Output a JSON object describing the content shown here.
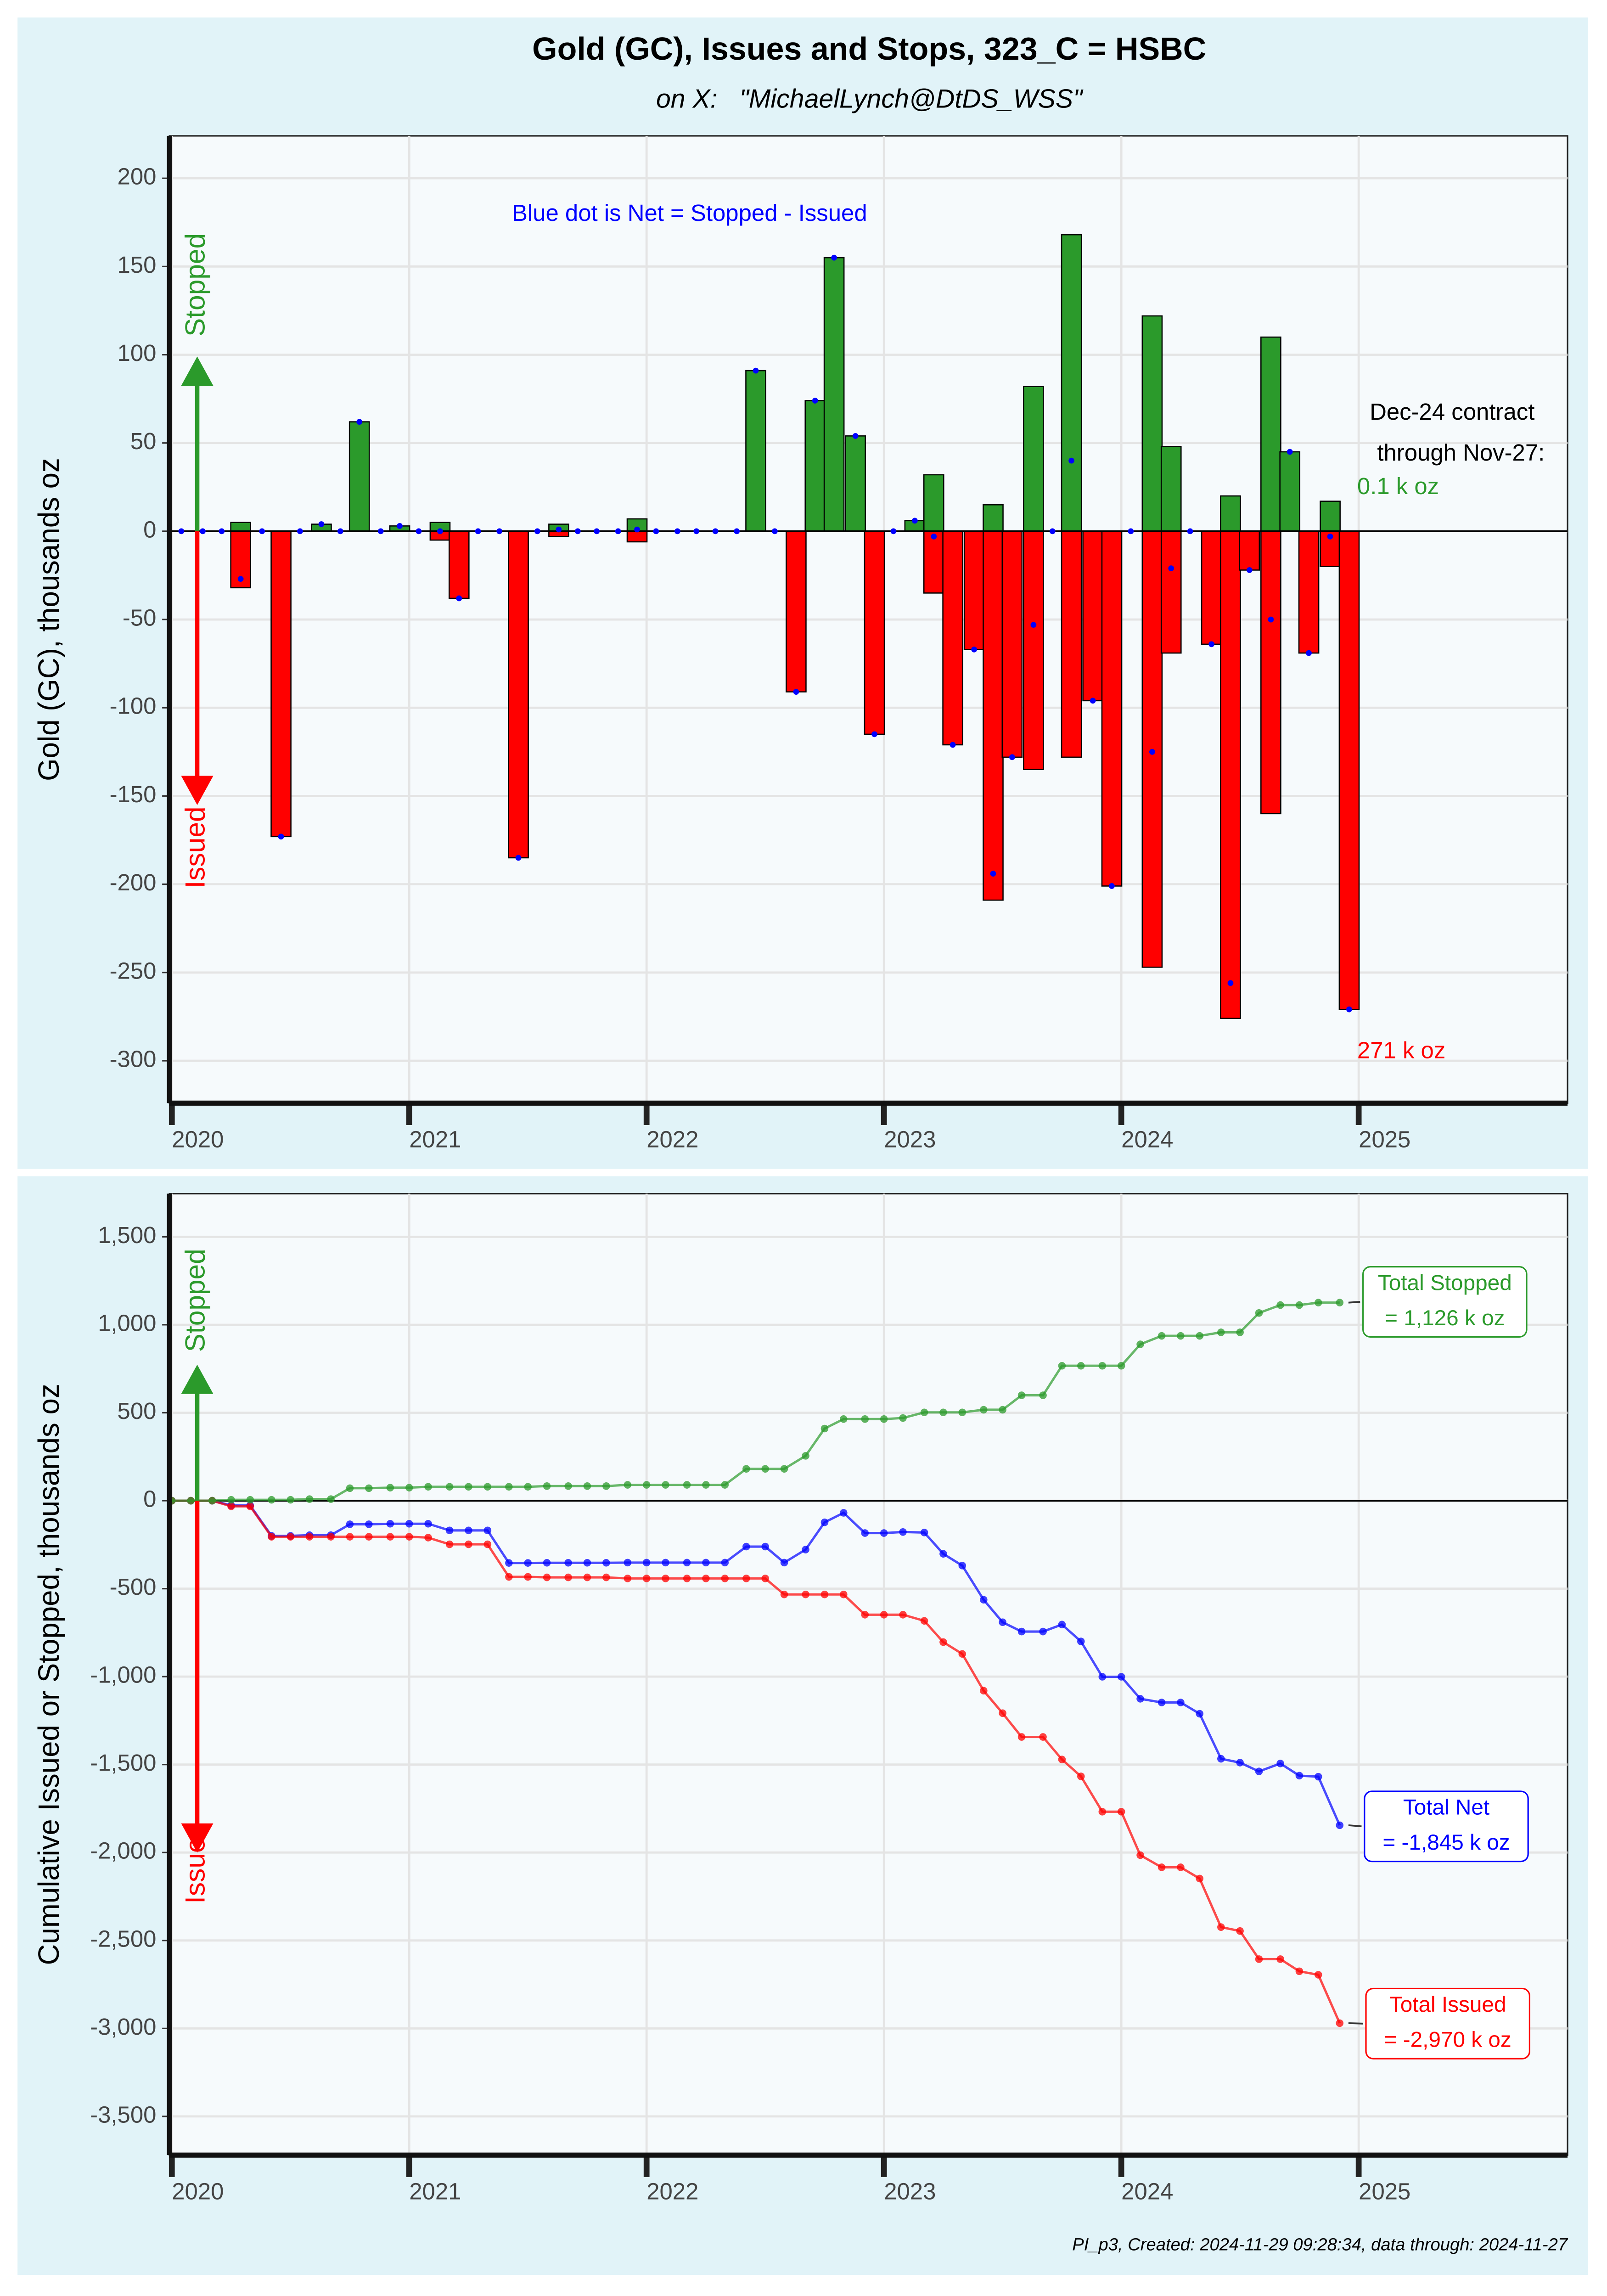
{
  "chart_data": [
    {
      "type": "bar",
      "title": "Gold (GC), Issues and Stops, 323_C = HSBC",
      "subtitle": "on X:   \"MichaelLynch@DtDS_WSS\"",
      "ylabel": "Gold (GC), thousands oz",
      "xlim": [
        2019.99,
        2025.88
      ],
      "xticks": [
        2020,
        2021,
        2022,
        2023,
        2024,
        2025
      ],
      "ylim": [
        -324,
        224
      ],
      "yticks": [
        -300,
        -250,
        -200,
        -150,
        -100,
        -50,
        0,
        50,
        100,
        150,
        200
      ],
      "grid": true,
      "x": [
        2020.04,
        2020.13,
        2020.21,
        2020.29,
        2020.38,
        2020.46,
        2020.54,
        2020.63,
        2020.71,
        2020.79,
        2020.88,
        2020.96,
        2021.04,
        2021.13,
        2021.21,
        2021.29,
        2021.38,
        2021.46,
        2021.54,
        2021.63,
        2021.71,
        2021.79,
        2021.88,
        2021.96,
        2022.04,
        2022.13,
        2022.21,
        2022.29,
        2022.38,
        2022.46,
        2022.54,
        2022.63,
        2022.71,
        2022.79,
        2022.88,
        2022.96,
        2023.04,
        2023.13,
        2023.21,
        2023.29,
        2023.38,
        2023.46,
        2023.54,
        2023.63,
        2023.71,
        2023.79,
        2023.88,
        2023.96,
        2024.04,
        2024.13,
        2024.21,
        2024.29,
        2024.38,
        2024.46,
        2024.54,
        2024.63,
        2024.71,
        2024.79,
        2024.88,
        2024.96
      ],
      "series": [
        {
          "name": "Stopped",
          "color": "#2b9a2b",
          "values": [
            0,
            0,
            0,
            5,
            0,
            0,
            0,
            4,
            0,
            62,
            0,
            3,
            0,
            5,
            0,
            0,
            0,
            0,
            0,
            4,
            0,
            0,
            0,
            7,
            0,
            0,
            0,
            0,
            0,
            91,
            0,
            0,
            74,
            155,
            54,
            0,
            0,
            6,
            32,
            0,
            0,
            15,
            0,
            82,
            0,
            168,
            0,
            0,
            0,
            122,
            48,
            0,
            0,
            20,
            0,
            110,
            45,
            0,
            17,
            0.1
          ]
        },
        {
          "name": "Issued",
          "color": "#ff0000",
          "values": [
            0,
            0,
            0,
            -32,
            0,
            -173,
            0,
            0,
            0,
            0,
            0,
            0,
            0,
            -5,
            -38,
            0,
            0,
            -185,
            0,
            -3,
            0,
            0,
            0,
            -6,
            0,
            0,
            0,
            0,
            0,
            0,
            0,
            -91,
            0,
            0,
            0,
            -115,
            0,
            0,
            -35,
            -121,
            -67,
            -209,
            -128,
            -135,
            0,
            -128,
            -96,
            -201,
            0,
            -247,
            -69,
            0,
            -64,
            -276,
            -22,
            -160,
            0,
            -69,
            -20,
            -271
          ]
        },
        {
          "color": "#0000ff",
          "values": [
            0,
            0,
            0,
            -27,
            0,
            -173,
            0,
            4,
            0,
            62,
            0,
            3,
            0,
            0,
            -38,
            0,
            0,
            -185,
            0,
            1,
            0,
            0,
            0,
            1,
            0,
            0,
            0,
            0,
            0,
            91,
            0,
            -91,
            74,
            155,
            54,
            -115,
            0,
            6,
            -3,
            -121,
            -67,
            -194,
            -128,
            -53,
            0,
            40,
            -96,
            -201,
            0,
            -125,
            -21,
            0,
            -64,
            -256,
            -22,
            -50,
            45,
            -69,
            -3,
            -270.9
          ]
        }
      ],
      "annotations": [
        {
          "text": "Blue dot is Net = Stopped - Issued",
          "color": "#0000ff"
        },
        {
          "text": "Dec-24 contract",
          "color": "#000000"
        },
        {
          "text": "through Nov-27:",
          "color": "#000000"
        },
        {
          "text": "0.1 k oz",
          "color": "#2b9a2b"
        },
        {
          "text": "271 k oz",
          "color": "#ff0000"
        }
      ]
    },
    {
      "type": "line",
      "ylabel": "Cumulative Issued or Stopped, thousands oz",
      "xlim": [
        2019.99,
        2025.88
      ],
      "xticks": [
        2020,
        2021,
        2022,
        2023,
        2024,
        2025
      ],
      "ylim": [
        -3720,
        1745
      ],
      "yticks": [
        {
          "value": -3500,
          "label": "-3,500"
        },
        {
          "value": -3000,
          "label": "-3,000"
        },
        {
          "value": -2500,
          "label": "-2,500"
        },
        {
          "value": -2000,
          "label": "-2,000"
        },
        {
          "value": -1500,
          "label": "-1,500"
        },
        {
          "value": -1000,
          "label": "-1,000"
        },
        -500,
        0,
        500,
        {
          "value": 1000,
          "label": "1,000"
        },
        {
          "value": 1500,
          "label": "1,500"
        }
      ],
      "grid": true,
      "x": [
        2020,
        2020.08,
        2020.17,
        2020.25,
        2020.33,
        2020.42,
        2020.5,
        2020.58,
        2020.67,
        2020.75,
        2020.83,
        2020.92,
        2021,
        2021.08,
        2021.17,
        2021.25,
        2021.33,
        2021.42,
        2021.5,
        2021.58,
        2021.67,
        2021.75,
        2021.83,
        2021.92,
        2022,
        2022.08,
        2022.17,
        2022.25,
        2022.33,
        2022.42,
        2022.5,
        2022.58,
        2022.67,
        2022.75,
        2022.83,
        2022.92,
        2023,
        2023.08,
        2023.17,
        2023.25,
        2023.33,
        2023.42,
        2023.5,
        2023.58,
        2023.67,
        2023.75,
        2023.83,
        2023.92,
        2024,
        2024.08,
        2024.17,
        2024.25,
        2024.33,
        2024.42,
        2024.5,
        2024.58,
        2024.67,
        2024.75,
        2024.83,
        2024.92
      ],
      "series": [
        {
          "name": "Stopped",
          "color": "#2b9a2b",
          "values": [
            0,
            0,
            0,
            5,
            5,
            5,
            5,
            9,
            9,
            71,
            71,
            74,
            74,
            79,
            79,
            79,
            79,
            79,
            79,
            83,
            83,
            83,
            83,
            90,
            90,
            90,
            90,
            90,
            90,
            181,
            181,
            181,
            255,
            410,
            464,
            464,
            464,
            470,
            502,
            502,
            502,
            517,
            517,
            599,
            599,
            767,
            767,
            767,
            767,
            889,
            937,
            937,
            937,
            957,
            957,
            1067,
            1112,
            1112,
            1126,
            1126
          ]
        },
        {
          "name": "Issued",
          "color": "#ff0000",
          "values": [
            0,
            0,
            0,
            -32,
            -32,
            -205,
            -205,
            -205,
            -205,
            -205,
            -205,
            -205,
            -205,
            -210,
            -248,
            -248,
            -248,
            -433,
            -433,
            -436,
            -436,
            -436,
            -436,
            -442,
            -442,
            -442,
            -442,
            -442,
            -442,
            -442,
            -442,
            -533,
            -533,
            -533,
            -533,
            -648,
            -648,
            -648,
            -683,
            -804,
            -871,
            -1080,
            -1208,
            -1343,
            -1343,
            -1471,
            -1567,
            -1768,
            -1768,
            -2015,
            -2084,
            -2084,
            -2148,
            -2424,
            -2446,
            -2606,
            -2606,
            -2675,
            -2695,
            -2970
          ]
        },
        {
          "color": "#0000ff",
          "values": [
            0,
            0,
            0,
            -27,
            -27,
            -200,
            -200,
            -196,
            -196,
            -134,
            -134,
            -131,
            -131,
            -131,
            -169,
            -169,
            -169,
            -354,
            -354,
            -353,
            -353,
            -353,
            -353,
            -352,
            -352,
            -352,
            -352,
            -352,
            -352,
            -261,
            -261,
            -352,
            -278,
            -123,
            -69,
            -184,
            -184,
            -178,
            -181,
            -302,
            -369,
            -563,
            -691,
            -744,
            -744,
            -704,
            -800,
            -1001,
            -1001,
            -1126,
            -1147,
            -1147,
            -1211,
            -1467,
            -1489,
            -1539,
            -1494,
            -1563,
            -1569,
            -1845
          ]
        }
      ],
      "labels": [
        {
          "lines": [
            "Total Stopped",
            "= 1,126 k oz"
          ],
          "color": "#2b9a2b"
        },
        {
          "lines": [
            "Total Net",
            "= -1,845 k oz"
          ],
          "color": "#0000ff"
        },
        {
          "lines": [
            "Total Issued",
            "= -2,970 k oz"
          ],
          "color": "#ff0000"
        }
      ],
      "caption": "PI_p3, Created: 2024-11-29 09:28:34, data through: 2024-11-27"
    }
  ]
}
